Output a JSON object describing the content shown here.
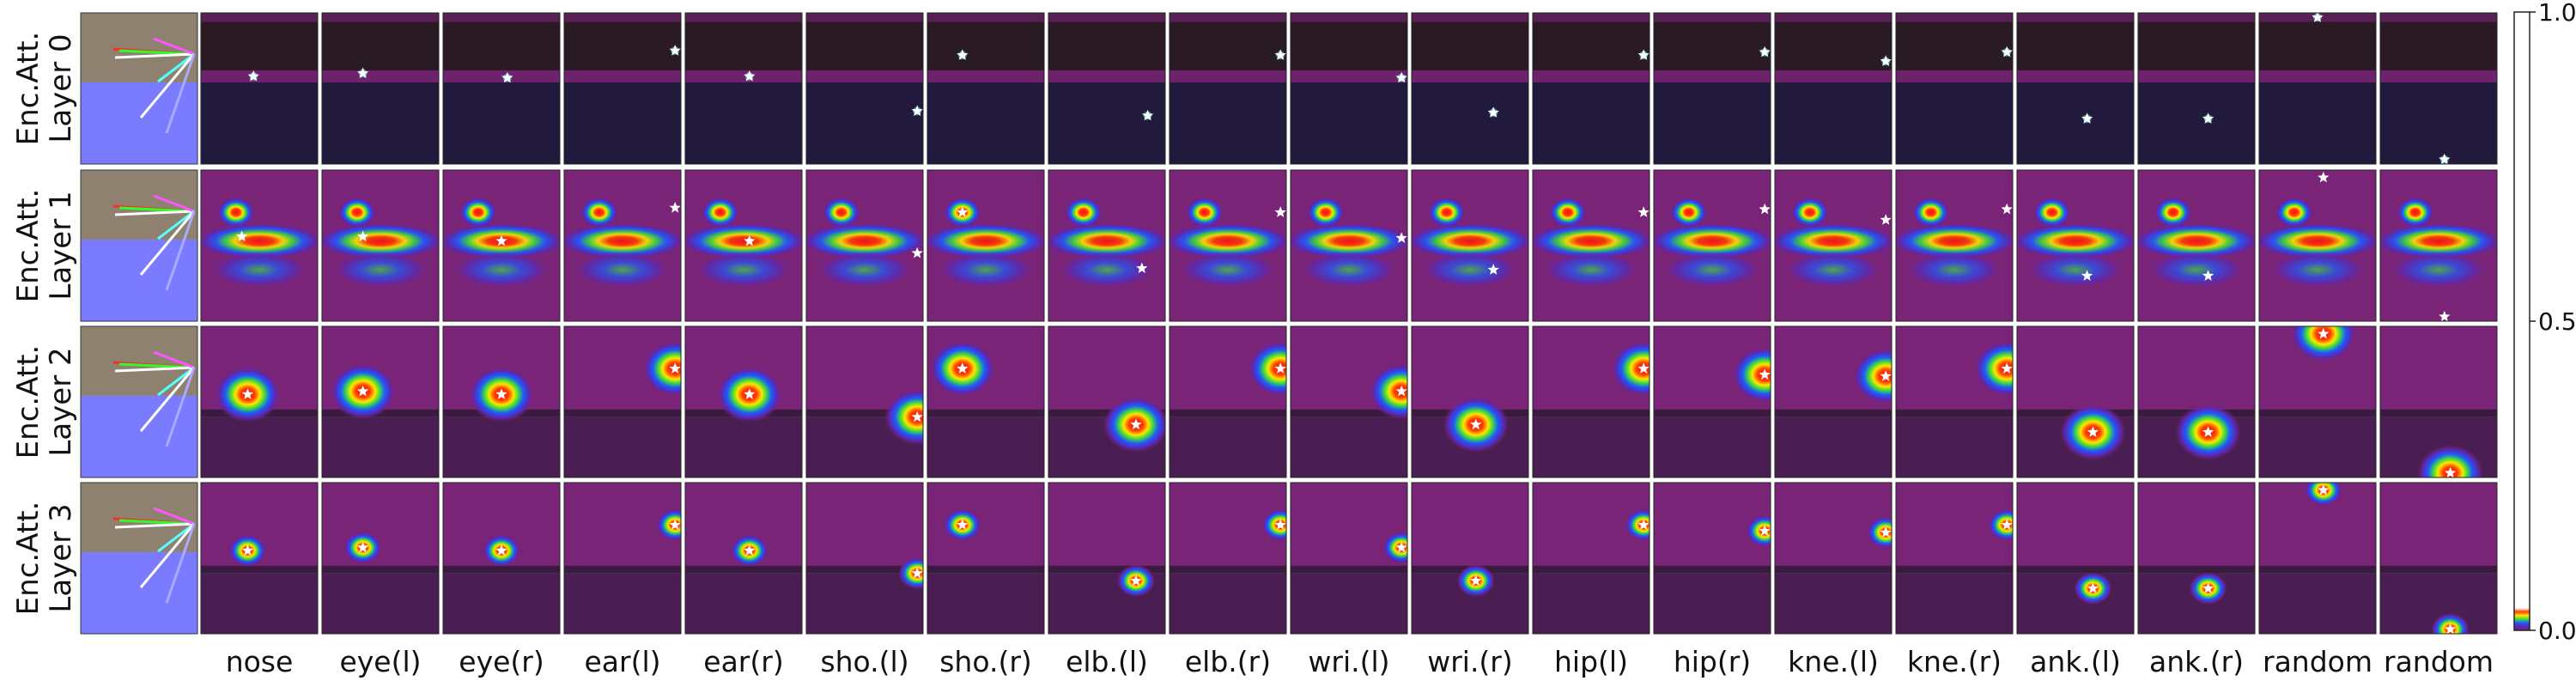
{
  "chart_data": {
    "type": "heatmap",
    "rows": [
      "Enc.Att.\nLayer 0",
      "Enc.Att.\nLayer 1",
      "Enc.Att.\nLayer 2",
      "Enc.Att.\nLayer 3"
    ],
    "row_labels": [
      {
        "line1": "Enc.Att.",
        "line2": "Layer 0"
      },
      {
        "line1": "Enc.Att.",
        "line2": "Layer 1"
      },
      {
        "line1": "Enc.Att.",
        "line2": "Layer 2"
      },
      {
        "line1": "Enc.Att.",
        "line2": "Layer 3"
      }
    ],
    "columns": [
      "nose",
      "eye(l)",
      "eye(r)",
      "ear(l)",
      "ear(r)",
      "sho.(l)",
      "sho.(r)",
      "elb.(l)",
      "elb.(r)",
      "wri.(l)",
      "wri.(r)",
      "hip(l)",
      "hip(r)",
      "kne.(l)",
      "kne.(r)",
      "ank.(l)",
      "ank.(r)",
      "random",
      "random"
    ],
    "colorbar": {
      "min": 0.0,
      "max": 1.0,
      "ticks": [
        "0.0",
        "0.5",
        "1.0"
      ]
    },
    "star_positions": [
      [
        [
          0.45,
          0.42
        ],
        [
          0.35,
          0.4
        ],
        [
          0.55,
          0.43
        ],
        [
          0.95,
          0.25
        ],
        [
          0.55,
          0.42
        ],
        [
          0.95,
          0.65
        ],
        [
          0.3,
          0.28
        ],
        [
          0.85,
          0.68
        ],
        [
          0.95,
          0.28
        ],
        [
          0.95,
          0.43
        ],
        [
          0.7,
          0.66
        ],
        [
          0.95,
          0.28
        ],
        [
          0.95,
          0.26
        ],
        [
          0.95,
          0.32
        ],
        [
          0.95,
          0.26
        ],
        [
          0.6,
          0.7
        ],
        [
          0.6,
          0.7
        ],
        [
          0.5,
          0.03
        ],
        [
          0.55,
          0.97
        ]
      ],
      [
        [
          0.35,
          0.44
        ],
        [
          0.35,
          0.44
        ],
        [
          0.5,
          0.47
        ],
        [
          0.95,
          0.25
        ],
        [
          0.55,
          0.47
        ],
        [
          0.95,
          0.55
        ],
        [
          0.3,
          0.28
        ],
        [
          0.8,
          0.65
        ],
        [
          0.95,
          0.28
        ],
        [
          0.95,
          0.45
        ],
        [
          0.7,
          0.66
        ],
        [
          0.95,
          0.28
        ],
        [
          0.95,
          0.26
        ],
        [
          0.95,
          0.33
        ],
        [
          0.95,
          0.26
        ],
        [
          0.6,
          0.7
        ],
        [
          0.6,
          0.7
        ],
        [
          0.55,
          0.05
        ],
        [
          0.55,
          0.97
        ]
      ],
      [
        [
          0.4,
          0.45
        ],
        [
          0.35,
          0.43
        ],
        [
          0.5,
          0.45
        ],
        [
          0.95,
          0.28
        ],
        [
          0.55,
          0.45
        ],
        [
          0.95,
          0.6
        ],
        [
          0.3,
          0.28
        ],
        [
          0.75,
          0.65
        ],
        [
          0.95,
          0.28
        ],
        [
          0.95,
          0.43
        ],
        [
          0.55,
          0.65
        ],
        [
          0.95,
          0.28
        ],
        [
          0.95,
          0.32
        ],
        [
          0.95,
          0.33
        ],
        [
          0.95,
          0.28
        ],
        [
          0.65,
          0.7
        ],
        [
          0.6,
          0.7
        ],
        [
          0.55,
          0.05
        ],
        [
          0.6,
          0.97
        ]
      ],
      [
        [
          0.4,
          0.45
        ],
        [
          0.35,
          0.43
        ],
        [
          0.5,
          0.45
        ],
        [
          0.95,
          0.28
        ],
        [
          0.55,
          0.45
        ],
        [
          0.95,
          0.6
        ],
        [
          0.3,
          0.28
        ],
        [
          0.75,
          0.65
        ],
        [
          0.95,
          0.28
        ],
        [
          0.95,
          0.43
        ],
        [
          0.55,
          0.65
        ],
        [
          0.95,
          0.28
        ],
        [
          0.95,
          0.32
        ],
        [
          0.95,
          0.33
        ],
        [
          0.95,
          0.28
        ],
        [
          0.65,
          0.7
        ],
        [
          0.6,
          0.7
        ],
        [
          0.55,
          0.05
        ],
        [
          0.6,
          0.97
        ]
      ]
    ]
  },
  "colors": {
    "dark_bg": "#2a1a24",
    "dark_bottom": "#221a3c",
    "purple": "#7a2478",
    "skeleton_top": "#8e8170",
    "skeleton_bottom": "#7b7bff"
  }
}
